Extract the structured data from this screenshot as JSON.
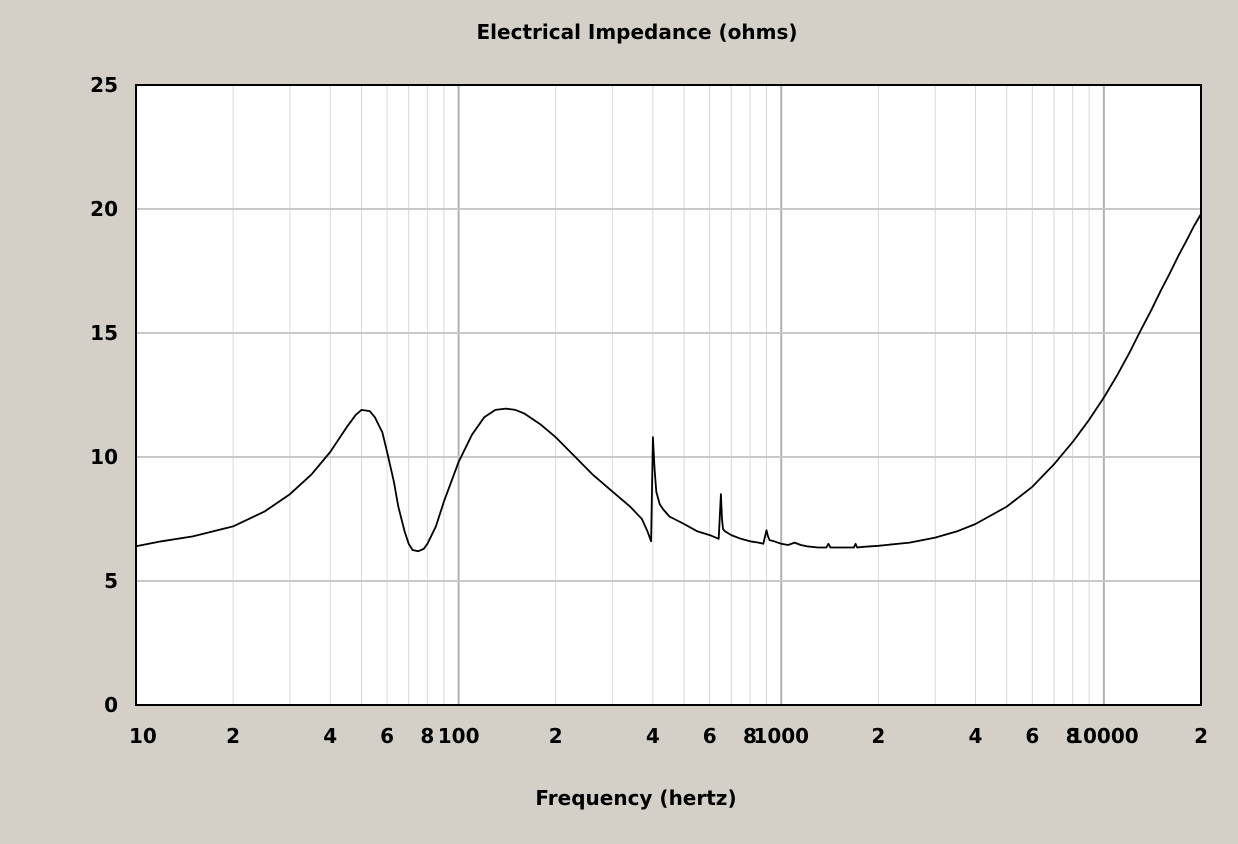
{
  "chart_data": {
    "type": "line",
    "title": "Electrical Impedance (ohms)",
    "xlabel": "Frequency (hertz)",
    "ylabel": "",
    "x_scale": "log",
    "xlim": [
      10,
      20000
    ],
    "ylim": [
      0,
      25
    ],
    "grid": true,
    "x_tick_labels": [
      {
        "value": 10,
        "label": "10",
        "major": true
      },
      {
        "value": 20,
        "label": "2"
      },
      {
        "value": 40,
        "label": "4"
      },
      {
        "value": 60,
        "label": "6"
      },
      {
        "value": 80,
        "label": "8"
      },
      {
        "value": 100,
        "label": "100",
        "major": true
      },
      {
        "value": 200,
        "label": "2"
      },
      {
        "value": 400,
        "label": "4"
      },
      {
        "value": 600,
        "label": "6"
      },
      {
        "value": 800,
        "label": "8"
      },
      {
        "value": 1000,
        "label": "1000",
        "major": true
      },
      {
        "value": 2000,
        "label": "2"
      },
      {
        "value": 4000,
        "label": "4"
      },
      {
        "value": 6000,
        "label": "6"
      },
      {
        "value": 8000,
        "label": "8"
      },
      {
        "value": 10000,
        "label": "10000",
        "major": true
      },
      {
        "value": 20000,
        "label": "2"
      }
    ],
    "y_ticks": [
      0,
      5,
      10,
      15,
      20,
      25
    ],
    "series": [
      {
        "color": "#000000",
        "x": [
          10,
          12,
          15,
          20,
          25,
          30,
          35,
          40,
          45,
          48,
          50,
          53,
          55,
          58,
          60,
          63,
          65,
          68,
          70,
          72,
          75,
          78,
          80,
          85,
          90,
          100,
          110,
          120,
          130,
          140,
          150,
          160,
          180,
          200,
          230,
          260,
          300,
          340,
          370,
          385,
          395,
          400,
          405,
          410,
          420,
          430,
          450,
          500,
          550,
          600,
          640,
          650,
          655,
          660,
          670,
          700,
          750,
          800,
          850,
          880,
          900,
          910,
          920,
          950,
          1000,
          1050,
          1100,
          1150,
          1200,
          1300,
          1380,
          1400,
          1420,
          1500,
          1600,
          1680,
          1700,
          1720,
          1800,
          2000,
          2500,
          3000,
          3500,
          4000,
          5000,
          6000,
          7000,
          8000,
          9000,
          10000,
          11000,
          12000,
          13000,
          14000,
          15000,
          16000,
          17000,
          18000,
          19000,
          20000
        ],
        "y": [
          6.4,
          6.6,
          6.8,
          7.2,
          7.8,
          8.5,
          9.3,
          10.2,
          11.2,
          11.7,
          11.9,
          11.85,
          11.6,
          11.0,
          10.2,
          9.0,
          8.0,
          7.0,
          6.5,
          6.25,
          6.2,
          6.3,
          6.5,
          7.2,
          8.2,
          9.8,
          10.9,
          11.6,
          11.9,
          11.95,
          11.9,
          11.75,
          11.3,
          10.8,
          10.0,
          9.3,
          8.6,
          8.0,
          7.5,
          7.0,
          6.6,
          10.8,
          9.5,
          8.6,
          8.1,
          7.9,
          7.6,
          7.3,
          7.0,
          6.85,
          6.7,
          8.5,
          7.5,
          7.1,
          7.0,
          6.85,
          6.7,
          6.6,
          6.55,
          6.5,
          7.05,
          6.8,
          6.65,
          6.6,
          6.5,
          6.45,
          6.55,
          6.45,
          6.4,
          6.35,
          6.35,
          6.5,
          6.35,
          6.35,
          6.35,
          6.35,
          6.5,
          6.35,
          6.38,
          6.42,
          6.55,
          6.75,
          7.0,
          7.3,
          8.0,
          8.8,
          9.7,
          10.6,
          11.5,
          12.4,
          13.3,
          14.2,
          15.1,
          15.9,
          16.7,
          17.4,
          18.1,
          18.7,
          19.3,
          19.8
        ]
      }
    ]
  }
}
